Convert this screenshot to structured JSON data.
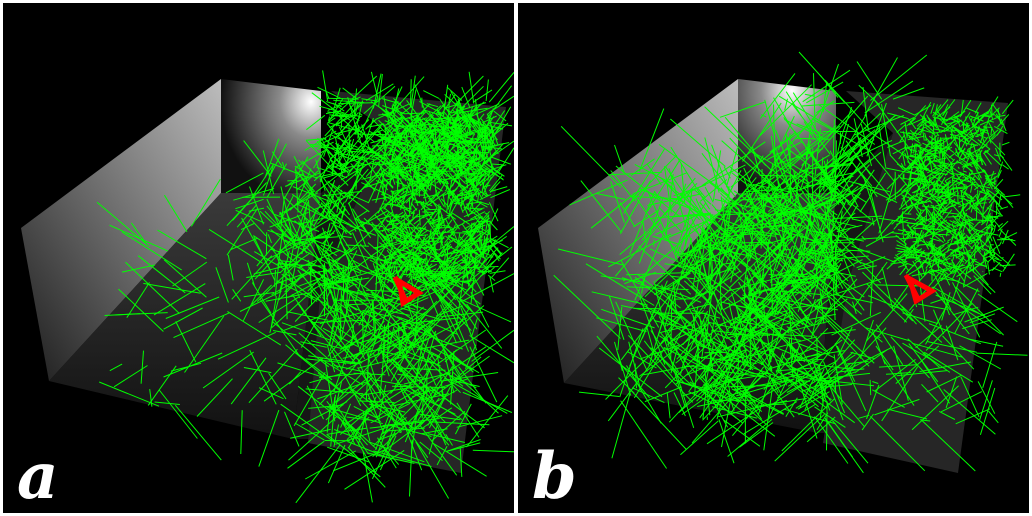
{
  "panels": [
    {
      "id": "a",
      "label": "a"
    },
    {
      "id": "b",
      "label": "b"
    }
  ],
  "colors": {
    "background": "#000000",
    "divider": "#ffffff",
    "path_lines": "#00ff00",
    "robot_marker": "#ff0000",
    "label_text": "#ffffff"
  }
}
